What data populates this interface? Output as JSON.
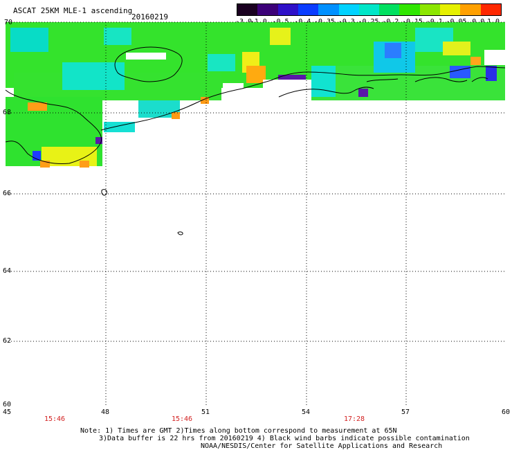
{
  "header": {
    "title": "ASCAT 25KM MLE-1 ascending",
    "date": "20160219"
  },
  "colorbar": {
    "labels": [
      "-3.0",
      "-1.0",
      "-0.5",
      "-0.4",
      "-0.35",
      "-0.3",
      "-0.25",
      "-0.2",
      "-0.15",
      "-0.1",
      "-0.05",
      "0.0",
      "1.0"
    ],
    "colors": [
      "#1a0020",
      "#3c0078",
      "#2e10c8",
      "#0a3cff",
      "#0090ff",
      "#00d2ff",
      "#00e6c8",
      "#00e060",
      "#30e600",
      "#8ce600",
      "#e6f000",
      "#ffa000",
      "#ff2800"
    ]
  },
  "map": {
    "lat_labels": [
      "70",
      "68",
      "66",
      "64",
      "62",
      "60"
    ],
    "lon_labels": [
      "45",
      "48",
      "51",
      "54",
      "57",
      "60"
    ],
    "times": [
      "15:46",
      "15:46",
      "17:28"
    ],
    "grid_style": "dotted",
    "coastline_color": "#000000",
    "time_color": "#d21e1e"
  },
  "footer": {
    "line1": "Note: 1) Times are GMT 2)Times along bottom correspond to measurement at 65N",
    "line2": "3)Data buffer is 22 hrs from 20160219 4) Black wind barbs indicate possible contamination",
    "line3": "NOAA/NESDIS/Center for Satellite Applications and Research"
  }
}
